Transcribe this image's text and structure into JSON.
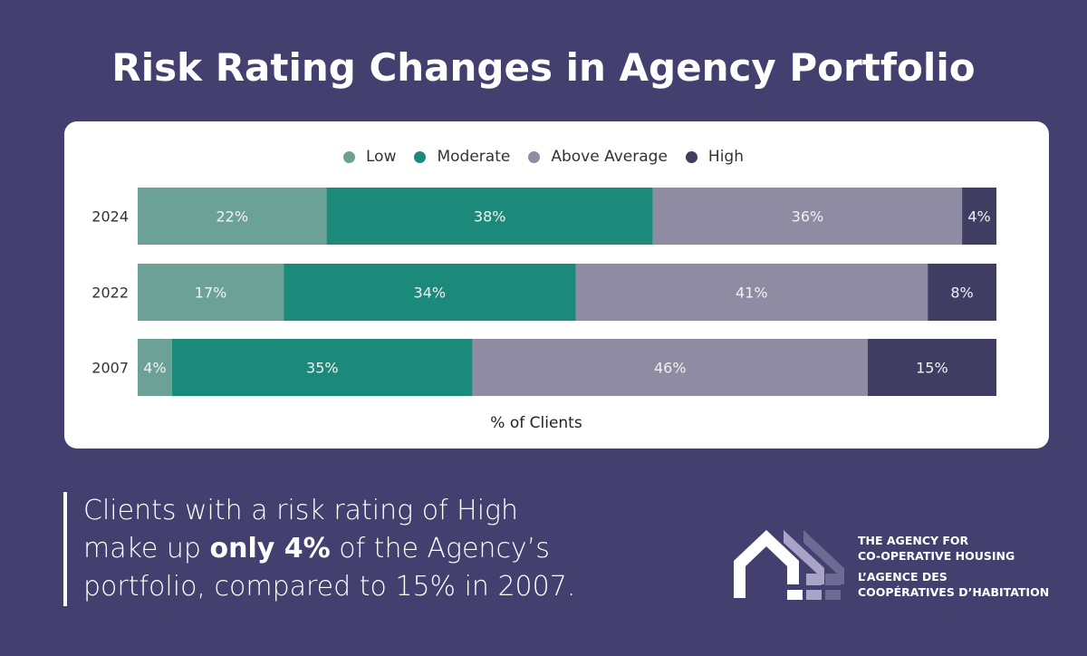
{
  "title": "Risk Rating Changes in Agency Portfolio",
  "statement": {
    "part1": "Clients with a risk rating of High",
    "part2_pre": "make up ",
    "part2_bold": "only 4%",
    "part2_post": " of the Agency’s",
    "part3": "portfolio, compared to 15% in 2007."
  },
  "organization": {
    "en_line1": "THE AGENCY FOR",
    "en_line2": "CO-OPERATIVE HOUSING",
    "fr_line1": "L’AGENCE DES",
    "fr_line2": "COOPÉRATIVES D’HABITATION",
    "logo_icon": "houses-logo-icon"
  },
  "colors": {
    "background": "#433f6e",
    "Low": "#6ba196",
    "Moderate": "#1c8a7a",
    "Above Average": "#8e8ba2",
    "High": "#403d63"
  },
  "chart_data": {
    "type": "bar",
    "orientation": "horizontal",
    "stacked": true,
    "title": "Risk Rating Changes in Agency Portfolio",
    "xlabel": "% of Clients",
    "ylabel": "",
    "categories": [
      "2024",
      "2022",
      "2007"
    ],
    "series": [
      {
        "name": "Low",
        "values": [
          22,
          17,
          4
        ]
      },
      {
        "name": "Moderate",
        "values": [
          38,
          34,
          35
        ]
      },
      {
        "name": "Above Average",
        "values": [
          36,
          41,
          46
        ]
      },
      {
        "name": "High",
        "values": [
          4,
          8,
          15
        ]
      }
    ],
    "labels_format": "{v}%",
    "xlim": [
      0,
      100
    ],
    "legend": "top-center",
    "grid": false
  }
}
